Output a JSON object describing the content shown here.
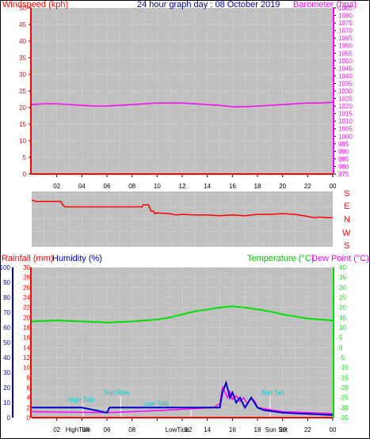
{
  "header": {
    "title": "24 hour graph day : 08 October 2019",
    "left_label": "Windspeed (kph)",
    "right_label": "Barometer (hpa)"
  },
  "colors": {
    "plot_bg": "#c0c0c0",
    "wind": "#ff0000",
    "barometer": "#ff00ff",
    "direction": "#ff0000",
    "rain": "#ff0000",
    "humidity": "#0000cc",
    "temperature": "#00e000",
    "dewpoint": "#ff00ff",
    "grid": "#ffffff",
    "astro": "#00cccc",
    "title": "#0000a0"
  },
  "x_ticks": [
    "02",
    "04",
    "06",
    "08",
    "10",
    "12",
    "14",
    "16",
    "18",
    "20",
    "22",
    "00"
  ],
  "direction_labels": [
    "S",
    "E",
    "N",
    "W",
    "S"
  ],
  "bottom_labels": {
    "rain": "Rainfall (mm)",
    "humidity": "Humidity (%)",
    "temperature": "Temperature (°C)",
    "dewpoint": "Dew Point (°C)"
  },
  "astro_labels": {
    "high_tide": "High Tide",
    "sun_rise": "Sun Rise",
    "low_tide": "Low Tide",
    "sun_set": "Sun Set"
  },
  "bottom_axis_labels": [
    "02",
    "HighTide",
    "04",
    "06",
    "08",
    "LowTide",
    "12",
    "14",
    "16",
    "18",
    "Sun Set",
    "20",
    "22",
    "00"
  ],
  "chart_data": [
    {
      "type": "line",
      "title": "24 hour graph day : 08 October 2019",
      "xlabel": "",
      "ylabel": "Windspeed (kph)",
      "y2label": "Barometer (hpa)",
      "x_unit": "hour",
      "xlim": [
        0,
        24
      ],
      "ylim": [
        0,
        50
      ],
      "y2lim": [
        975,
        1085
      ],
      "series": [
        {
          "name": "Windspeed (kph)",
          "axis": "left",
          "x": [
            0,
            24
          ],
          "y": [
            0,
            0
          ]
        },
        {
          "name": "Barometer (hpa)",
          "axis": "right",
          "x": [
            0,
            1,
            2,
            3,
            4,
            5,
            6,
            7,
            8,
            9,
            10,
            11,
            12,
            13,
            14,
            15,
            16,
            17,
            18,
            19,
            20,
            21,
            22,
            23,
            24
          ],
          "y": [
            1021,
            1021.5,
            1021.5,
            1021,
            1020.5,
            1020,
            1020,
            1020.5,
            1021,
            1021.5,
            1022,
            1022,
            1022,
            1021.5,
            1021,
            1020.5,
            1019.5,
            1019.5,
            1020,
            1020.5,
            1021,
            1021.5,
            1022,
            1022,
            1022.5
          ]
        }
      ]
    },
    {
      "type": "line",
      "ylabel": "Wind Direction",
      "y_ticks": [
        "S",
        "E",
        "N",
        "W",
        "S"
      ],
      "xlim": [
        0,
        24
      ],
      "ylim": [
        0,
        360
      ],
      "series": [
        {
          "name": "Direction",
          "x": [
            0,
            0.3,
            0.6,
            2.3,
            2.6,
            3,
            8.8,
            8.9,
            9.3,
            9.5,
            9.7,
            9.8,
            10,
            11,
            11.5,
            12,
            13,
            14,
            15,
            16,
            17,
            18,
            19,
            20,
            21,
            22,
            22.5,
            23,
            23.5,
            24
          ],
          "y": [
            320,
            310,
            310,
            310,
            270,
            270,
            270,
            285,
            285,
            240,
            240,
            220,
            225,
            220,
            210,
            215,
            210,
            210,
            205,
            210,
            205,
            215,
            215,
            220,
            215,
            200,
            190,
            195,
            190,
            190
          ]
        }
      ]
    },
    {
      "type": "line",
      "ylabel": "Rainfall (mm)",
      "y2label": "Temperature (°C)",
      "xlim": [
        0,
        24
      ],
      "ylim_rain": [
        0,
        30
      ],
      "ylim_humidity": [
        0,
        100
      ],
      "y2lim": [
        -35,
        40
      ],
      "series": [
        {
          "name": "Rainfall (mm)",
          "axis": "rain",
          "x": [
            0,
            24
          ],
          "y": [
            0,
            0
          ]
        },
        {
          "name": "Humidity (%)",
          "axis": "humidity",
          "x": [
            0,
            4,
            6,
            6.2,
            14.5,
            15,
            15.2,
            15.5,
            15.8,
            16,
            16.3,
            16.6,
            17,
            17.5,
            18,
            18.5,
            20,
            24
          ],
          "y": [
            2,
            2,
            1,
            2,
            2,
            2,
            5,
            7,
            4,
            5,
            3,
            4,
            2,
            4,
            2,
            1.5,
            1,
            0.5
          ]
        },
        {
          "name": "Temperature (°C)",
          "axis": "right",
          "x": [
            0,
            2,
            4,
            6,
            8,
            10,
            11,
            12,
            13,
            14,
            15,
            16,
            17,
            18,
            19,
            20,
            21,
            22,
            23,
            24
          ],
          "y": [
            13,
            13.5,
            13,
            12.5,
            13,
            14,
            15,
            16.5,
            18,
            19,
            20,
            20.5,
            20,
            19,
            18,
            16.5,
            15.5,
            14.5,
            14,
            13.5
          ]
        },
        {
          "name": "Dew Point (°C)",
          "axis": "right",
          "x": [
            0,
            6,
            10,
            14.5,
            15,
            15.2,
            15.4,
            15.6,
            15.8,
            16,
            16.3,
            16.6,
            16.9,
            17.2,
            17.5,
            17.8,
            18,
            19,
            20,
            24
          ],
          "y": [
            -32,
            -32.5,
            -31.5,
            -30,
            -28,
            -20,
            -22,
            -25,
            -22,
            -26,
            -24,
            -27,
            -25,
            -28,
            -25,
            -27,
            -30,
            -31,
            -32,
            -33
          ]
        }
      ]
    }
  ]
}
